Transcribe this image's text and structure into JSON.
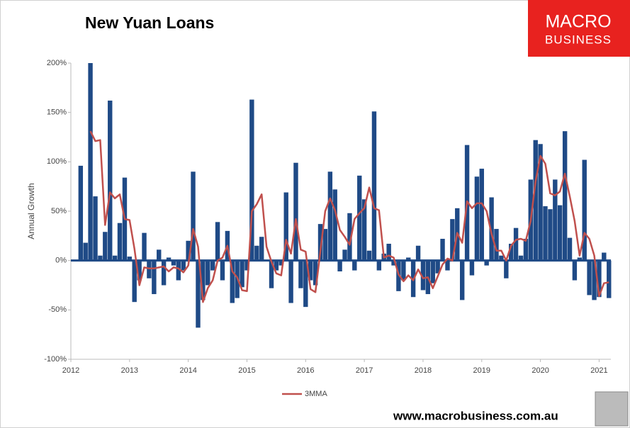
{
  "chart_data": {
    "type": "bar",
    "title": "New Yuan Loans",
    "y_label": "Annual Growth",
    "x": [
      2012.167,
      2012.25,
      2012.333,
      2012.417,
      2012.5,
      2012.583,
      2012.667,
      2012.75,
      2012.833,
      2012.917,
      2013,
      2013.083,
      2013.167,
      2013.25,
      2013.333,
      2013.417,
      2013.5,
      2013.583,
      2013.667,
      2013.75,
      2013.833,
      2013.917,
      2014,
      2014.083,
      2014.167,
      2014.25,
      2014.333,
      2014.417,
      2014.5,
      2014.583,
      2014.667,
      2014.75,
      2014.833,
      2014.917,
      2015,
      2015.083,
      2015.167,
      2015.25,
      2015.333,
      2015.417,
      2015.5,
      2015.583,
      2015.667,
      2015.75,
      2015.833,
      2015.917,
      2016,
      2016.083,
      2016.167,
      2016.25,
      2016.333,
      2016.417,
      2016.5,
      2016.583,
      2016.667,
      2016.75,
      2016.833,
      2016.917,
      2017,
      2017.083,
      2017.167,
      2017.25,
      2017.333,
      2017.417,
      2017.5,
      2017.583,
      2017.667,
      2017.75,
      2017.833,
      2017.917,
      2018,
      2018.083,
      2018.167,
      2018.25,
      2018.333,
      2018.417,
      2018.5,
      2018.583,
      2018.667,
      2018.75,
      2018.833,
      2018.917,
      2019,
      2019.083,
      2019.167,
      2019.25,
      2019.333,
      2019.417,
      2019.5,
      2019.583,
      2019.667,
      2019.75,
      2019.833,
      2019.917,
      2020,
      2020.083,
      2020.167,
      2020.25,
      2020.333,
      2020.417,
      2020.5,
      2020.583,
      2020.667,
      2020.75,
      2020.833,
      2020.917,
      2021,
      2021.083,
      2021.167
    ],
    "series": [
      {
        "type": "bar",
        "color": "#1f4a86",
        "values": [
          96,
          18,
          200,
          65,
          5,
          29,
          162,
          5,
          38,
          84,
          4,
          -42,
          -20,
          28,
          -18,
          -34,
          11,
          -25,
          3,
          -5,
          -20,
          -10,
          20,
          90,
          -68,
          -40,
          -25,
          -10,
          39,
          -20,
          30,
          -43,
          -38,
          -27,
          -10,
          163,
          15,
          24,
          0,
          -28,
          -10,
          -5,
          69,
          -43,
          99,
          -28,
          -47,
          -20,
          -25,
          37,
          32,
          90,
          72,
          -11,
          11,
          48,
          -10,
          86,
          62,
          10,
          151,
          -10,
          7,
          17,
          -5,
          -31,
          -20,
          3,
          -37,
          15,
          -30,
          -34,
          -23,
          -13,
          22,
          -10,
          42,
          53,
          -40,
          117,
          -15,
          85,
          93,
          -5,
          64,
          32,
          5,
          -18,
          17,
          33,
          5,
          22,
          82,
          122,
          118,
          55,
          52,
          82,
          56,
          131,
          23,
          -20,
          3,
          102,
          -35,
          -40,
          -37,
          8,
          -38
        ]
      },
      {
        "type": "line",
        "name": "3MMA",
        "color": "#c0504d",
        "values": [
          null,
          null,
          131,
          121,
          122,
          36,
          69,
          63,
          67,
          42,
          41,
          12,
          -25,
          -7,
          -8,
          -8,
          -7,
          -6,
          -11,
          -7,
          -8,
          -12,
          -5,
          32,
          14,
          -42,
          -28,
          -20,
          0,
          3,
          15,
          -11,
          -17,
          -30,
          -31,
          50,
          57,
          67,
          14,
          -1,
          -13,
          -15,
          21,
          7,
          42,
          11,
          9,
          -29,
          -32,
          9,
          50,
          63,
          51,
          31,
          24,
          16,
          42,
          48,
          53,
          74,
          53,
          51,
          3,
          5,
          3,
          -14,
          -21,
          -15,
          -20,
          -9,
          -18,
          -17,
          -28,
          -16,
          -4,
          2,
          0,
          28,
          18,
          60,
          53,
          58,
          58,
          50,
          27,
          10,
          10,
          0,
          15,
          21,
          22,
          20,
          40,
          80,
          106,
          98,
          68,
          66,
          70,
          88,
          65,
          40,
          5,
          28,
          22,
          5,
          -36,
          -23,
          -22
        ]
      }
    ],
    "xlim": [
      2012,
      2021.2
    ],
    "xticks": [
      2012,
      2013,
      2014,
      2015,
      2016,
      2017,
      2018,
      2019,
      2020,
      2021
    ],
    "ylim": [
      -100,
      200
    ],
    "yticks": [
      {
        "value": -100,
        "label": "-100%"
      },
      {
        "value": -50,
        "label": "-50%"
      },
      {
        "value": 0,
        "label": "0%"
      },
      {
        "value": 50,
        "label": "50%"
      },
      {
        "value": 100,
        "label": "100%"
      },
      {
        "value": 150,
        "label": "150%"
      },
      {
        "value": 200,
        "label": "200%"
      }
    ],
    "legend": "bottom"
  },
  "logo": {
    "line1": "MACRO",
    "line2": "BUSINESS"
  },
  "footer": "www.macrobusiness.com.au"
}
